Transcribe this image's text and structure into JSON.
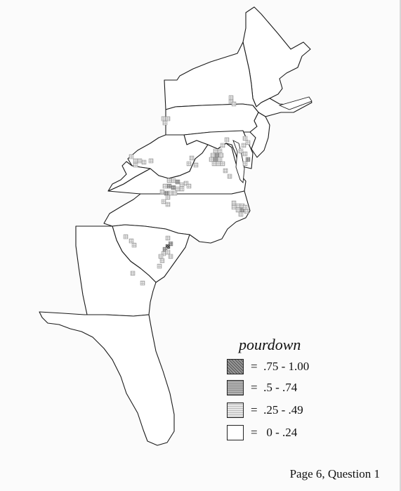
{
  "legend": {
    "title": "pourdown",
    "items": [
      {
        "label": "=  .75 - 1.00",
        "fill": "#6a6a6a",
        "pattern": "dark"
      },
      {
        "label": "=  .5 - .74",
        "fill": "#9a9a9a",
        "pattern": "mid"
      },
      {
        "label": "=  .25 - .49",
        "fill": "#d0d0d0",
        "pattern": "light"
      },
      {
        "label": "=   0 - .24",
        "fill": "#ffffff",
        "pattern": "none"
      }
    ]
  },
  "footer": {
    "text": "Page 6, Question 1"
  },
  "colors": {
    "dark": "#6a6a6a",
    "mid": "#9a9a9a",
    "light": "#cfcfcf",
    "outline": "#1a1a1a"
  }
}
